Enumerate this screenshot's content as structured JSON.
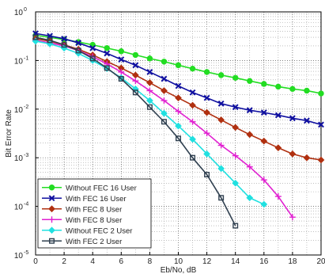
{
  "chart_data": {
    "type": "line",
    "xlabel": "Eb/No, dB",
    "ylabel": "Bit Error Rate",
    "xlim": [
      0,
      20
    ],
    "ylim_log10": [
      -5,
      0
    ],
    "y_scale": "log",
    "grid": true,
    "minor_grid": true,
    "legend_position": "bottom-left",
    "x_ticks": [
      "0",
      "2",
      "4",
      "6",
      "8",
      "10",
      "12",
      "14",
      "16",
      "18",
      "20"
    ],
    "y_ticks": [
      {
        "base": "10",
        "exp": "0",
        "log": 0
      },
      {
        "base": "10",
        "exp": "-1",
        "log": -1
      },
      {
        "base": "10",
        "exp": "-2",
        "log": -2
      },
      {
        "base": "10",
        "exp": "-3",
        "log": -3
      },
      {
        "base": "10",
        "exp": "-4",
        "log": -4
      },
      {
        "base": "10",
        "exp": "-5",
        "log": -5
      }
    ],
    "series": [
      {
        "name": "Without FEC 16 User",
        "color": "#22dd22",
        "marker": "circle",
        "x": [
          0,
          1,
          2,
          3,
          4,
          5,
          6,
          7,
          8,
          9,
          10,
          11,
          12,
          13,
          14,
          15,
          16,
          17,
          18,
          19,
          20
        ],
        "y": [
          0.33,
          0.3,
          0.27,
          0.24,
          0.21,
          0.18,
          0.155,
          0.13,
          0.11,
          0.095,
          0.08,
          0.068,
          0.058,
          0.05,
          0.044,
          0.038,
          0.033,
          0.029,
          0.026,
          0.024,
          0.021
        ]
      },
      {
        "name": "With FEC 16 User",
        "color": "#1010a0",
        "marker": "x",
        "x": [
          0,
          1,
          2,
          3,
          4,
          5,
          6,
          7,
          8,
          9,
          10,
          11,
          12,
          13,
          14,
          15,
          16,
          17,
          18,
          19,
          20
        ],
        "y": [
          0.36,
          0.32,
          0.28,
          0.23,
          0.18,
          0.14,
          0.105,
          0.08,
          0.058,
          0.042,
          0.03,
          0.022,
          0.017,
          0.013,
          0.011,
          0.0095,
          0.0085,
          0.0075,
          0.0065,
          0.0058,
          0.0048
        ]
      },
      {
        "name": "With FEC 8 User",
        "color": "#b03010",
        "marker": "diamond",
        "x": [
          0,
          1,
          2,
          3,
          4,
          5,
          6,
          7,
          8,
          9,
          10,
          11,
          12,
          13,
          14,
          15,
          16,
          17,
          18,
          19,
          20
        ],
        "y": [
          0.28,
          0.25,
          0.21,
          0.17,
          0.13,
          0.095,
          0.07,
          0.05,
          0.035,
          0.024,
          0.017,
          0.012,
          0.0085,
          0.006,
          0.0042,
          0.003,
          0.0022,
          0.0016,
          0.0012,
          0.001,
          0.0009
        ]
      },
      {
        "name": "With FEC 8 User",
        "color": "#e020d0",
        "marker": "plus",
        "x": [
          0,
          1,
          2,
          3,
          4,
          5,
          6,
          7,
          8,
          9,
          10,
          11,
          12,
          13,
          14,
          15,
          16,
          17,
          18
        ],
        "y": [
          0.26,
          0.23,
          0.2,
          0.16,
          0.12,
          0.085,
          0.058,
          0.038,
          0.024,
          0.015,
          0.009,
          0.0055,
          0.0032,
          0.0018,
          0.0011,
          0.00065,
          0.00035,
          0.00016,
          6e-05
        ]
      },
      {
        "name": "Without FEC 2 User",
        "color": "#20e0e0",
        "marker": "diamond",
        "x": [
          0,
          1,
          2,
          3,
          4,
          5,
          6,
          7,
          8,
          9,
          10,
          11,
          12,
          13,
          14,
          15,
          16
        ],
        "y": [
          0.25,
          0.22,
          0.18,
          0.14,
          0.1,
          0.068,
          0.044,
          0.026,
          0.015,
          0.0082,
          0.0045,
          0.0024,
          0.0012,
          0.0006,
          0.0003,
          0.00015,
          0.00011
        ]
      },
      {
        "name": "With FEC 2 User",
        "color": "#304050",
        "marker": "square",
        "x": [
          0,
          1,
          2,
          3,
          4,
          5,
          6,
          7,
          8,
          9,
          10,
          11,
          12,
          13,
          14
        ],
        "y": [
          0.3,
          0.26,
          0.21,
          0.16,
          0.11,
          0.07,
          0.042,
          0.022,
          0.011,
          0.0055,
          0.0025,
          0.001,
          0.00045,
          0.00015,
          4e-05
        ]
      }
    ]
  }
}
